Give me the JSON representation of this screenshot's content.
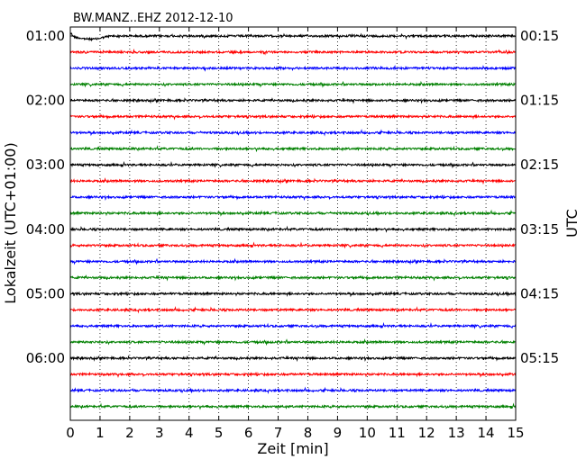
{
  "chart_data": {
    "type": "line",
    "title": "BW.MANZ..EHZ 2012-12-10",
    "xlabel": "Zeit  [min]",
    "ylabel_left": "Lokalzeit (UTC+01:00)",
    "ylabel_right": "UTC",
    "xlim": [
      0,
      15
    ],
    "x_ticks": [
      0,
      1,
      2,
      3,
      4,
      5,
      6,
      7,
      8,
      9,
      10,
      11,
      12,
      13,
      14,
      15
    ],
    "x_grid": "dotted vertical lines at every minute",
    "left_tick_labels": [
      "01:00",
      "02:00",
      "03:00",
      "04:00",
      "05:00",
      "06:00"
    ],
    "right_tick_labels": [
      "00:15",
      "01:15",
      "02:15",
      "03:15",
      "04:15",
      "05:15"
    ],
    "trace_colors": [
      "#000000",
      "#ff0000",
      "#0000ff",
      "#008000"
    ],
    "trace_count": 24,
    "minutes_per_trace": 15,
    "series": [
      {
        "color": "#000000",
        "trace_index": 0,
        "starts_local": "01:00",
        "note_shape": "initial dip"
      },
      {
        "color": "#ff0000",
        "trace_index": 1
      },
      {
        "color": "#0000ff",
        "trace_index": 2
      },
      {
        "color": "#008000",
        "trace_index": 3
      },
      {
        "color": "#000000",
        "trace_index": 4,
        "starts_local": "02:00"
      },
      {
        "color": "#ff0000",
        "trace_index": 5
      },
      {
        "color": "#0000ff",
        "trace_index": 6
      },
      {
        "color": "#008000",
        "trace_index": 7
      },
      {
        "color": "#000000",
        "trace_index": 8,
        "starts_local": "03:00"
      },
      {
        "color": "#ff0000",
        "trace_index": 9
      },
      {
        "color": "#0000ff",
        "trace_index": 10
      },
      {
        "color": "#008000",
        "trace_index": 11
      },
      {
        "color": "#000000",
        "trace_index": 12,
        "starts_local": "04:00"
      },
      {
        "color": "#ff0000",
        "trace_index": 13
      },
      {
        "color": "#0000ff",
        "trace_index": 14
      },
      {
        "color": "#008000",
        "trace_index": 15
      },
      {
        "color": "#000000",
        "trace_index": 16,
        "starts_local": "05:00"
      },
      {
        "color": "#ff0000",
        "trace_index": 17
      },
      {
        "color": "#0000ff",
        "trace_index": 18
      },
      {
        "color": "#008000",
        "trace_index": 19
      },
      {
        "color": "#000000",
        "trace_index": 20,
        "starts_local": "06:00"
      },
      {
        "color": "#ff0000",
        "trace_index": 21
      },
      {
        "color": "#0000ff",
        "trace_index": 22
      },
      {
        "color": "#008000",
        "trace_index": 23
      }
    ]
  }
}
